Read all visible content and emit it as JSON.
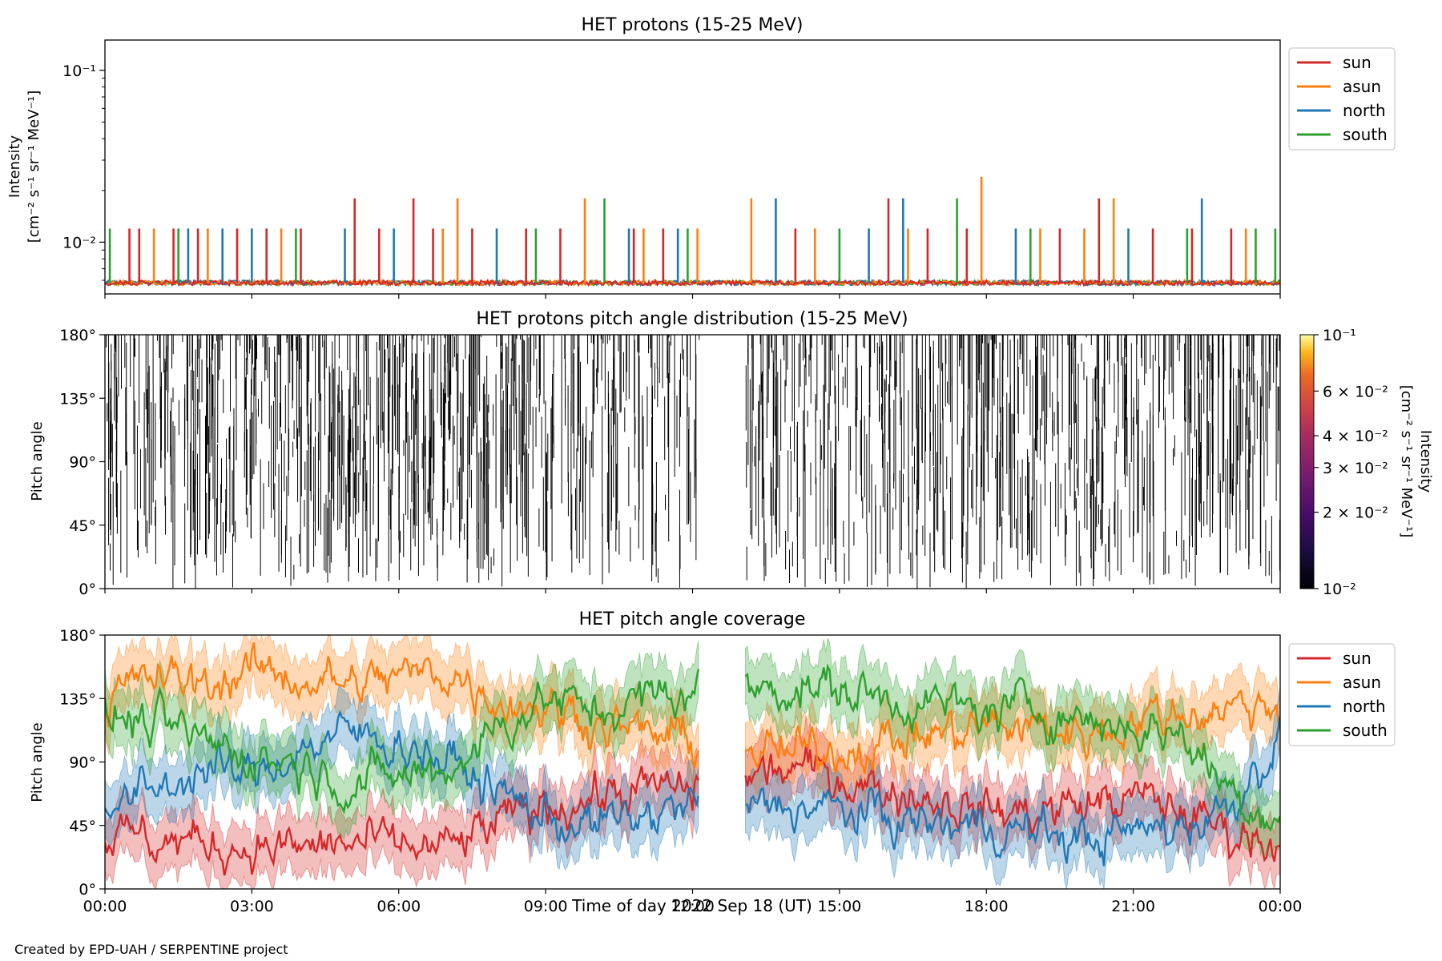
{
  "footer": {
    "credit": "Created by EPD-UAH / SERPENTINE project"
  },
  "colors": {
    "sun": "#d62728",
    "asun": "#ff7f0e",
    "north": "#1f77b4",
    "south": "#2ca02c"
  },
  "chart_data": [
    {
      "type": "line",
      "title": "HET protons (15-25 MeV)",
      "ylabel_line1": "Intensity",
      "ylabel_line2": "[cm⁻² s⁻¹ sr⁻¹ MeV⁻¹]",
      "yscale": "log",
      "ylim": [
        0.005,
        0.15
      ],
      "yticks": [
        "10⁻¹",
        "10⁻²"
      ],
      "ytick_values": [
        0.1,
        0.01
      ],
      "xlim": [
        "2022-09-18 00:00",
        "2022-09-19 00:00"
      ],
      "legend": [
        "sun",
        "asun",
        "north",
        "south"
      ],
      "legend_position": "right",
      "baseline_value": 0.0058,
      "series": [
        {
          "name": "sun",
          "spikes": [
            [
              0.5,
              0.012
            ],
            [
              0.7,
              0.012
            ],
            [
              1.4,
              0.012
            ],
            [
              1.9,
              0.012
            ],
            [
              2.7,
              0.012
            ],
            [
              3.3,
              0.012
            ],
            [
              4.0,
              0.012
            ],
            [
              5.1,
              0.018
            ],
            [
              5.6,
              0.012
            ],
            [
              6.3,
              0.018
            ],
            [
              6.7,
              0.012
            ],
            [
              7.5,
              0.012
            ],
            [
              8.6,
              0.012
            ],
            [
              9.3,
              0.012
            ],
            [
              10.8,
              0.012
            ],
            [
              11.4,
              0.012
            ],
            [
              14.1,
              0.012
            ],
            [
              16.0,
              0.018
            ],
            [
              16.8,
              0.012
            ],
            [
              17.6,
              0.012
            ],
            [
              19.5,
              0.012
            ],
            [
              20.3,
              0.018
            ],
            [
              21.4,
              0.012
            ],
            [
              22.2,
              0.012
            ],
            [
              23.0,
              0.012
            ]
          ]
        },
        {
          "name": "asun",
          "spikes": [
            [
              1.0,
              0.012
            ],
            [
              2.1,
              0.012
            ],
            [
              3.6,
              0.012
            ],
            [
              6.9,
              0.012
            ],
            [
              7.2,
              0.018
            ],
            [
              9.8,
              0.018
            ],
            [
              11.0,
              0.012
            ],
            [
              12.1,
              0.012
            ],
            [
              13.2,
              0.018
            ],
            [
              14.5,
              0.012
            ],
            [
              16.4,
              0.012
            ],
            [
              17.9,
              0.024
            ],
            [
              19.1,
              0.012
            ],
            [
              20.0,
              0.012
            ],
            [
              20.6,
              0.018
            ],
            [
              23.3,
              0.012
            ]
          ]
        },
        {
          "name": "north",
          "spikes": [
            [
              1.7,
              0.012
            ],
            [
              2.4,
              0.012
            ],
            [
              3.0,
              0.012
            ],
            [
              4.9,
              0.012
            ],
            [
              5.9,
              0.012
            ],
            [
              8.0,
              0.012
            ],
            [
              10.7,
              0.012
            ],
            [
              11.7,
              0.012
            ],
            [
              13.7,
              0.018
            ],
            [
              15.6,
              0.012
            ],
            [
              16.3,
              0.018
            ],
            [
              18.6,
              0.012
            ],
            [
              20.9,
              0.012
            ],
            [
              22.4,
              0.018
            ]
          ]
        },
        {
          "name": "south",
          "spikes": [
            [
              0.1,
              0.012
            ],
            [
              1.5,
              0.012
            ],
            [
              3.9,
              0.012
            ],
            [
              8.8,
              0.012
            ],
            [
              10.2,
              0.018
            ],
            [
              11.9,
              0.012
            ],
            [
              15.0,
              0.012
            ],
            [
              17.4,
              0.018
            ],
            [
              18.9,
              0.012
            ],
            [
              22.1,
              0.012
            ],
            [
              23.5,
              0.012
            ],
            [
              23.9,
              0.012
            ]
          ]
        }
      ]
    },
    {
      "type": "heatmap",
      "title": "HET protons pitch angle distribution (15-25 MeV)",
      "ylabel": "Pitch angle",
      "ylim": [
        0,
        180
      ],
      "yticks": [
        "0°",
        "45°",
        "90°",
        "135°",
        "180°"
      ],
      "ytick_values": [
        0,
        45,
        90,
        135,
        180
      ],
      "xlim": [
        "2022-09-18 00:00",
        "2022-09-19 00:00"
      ],
      "data_gap_hours": [
        12.15,
        13.05
      ],
      "colorbar": {
        "label_line1": "Intensity",
        "label_line2": "[cm⁻² s⁻¹ sr⁻¹ MeV⁻¹]",
        "scale": "log",
        "range": [
          0.01,
          0.1
        ],
        "ticks": [
          {
            "value": 0.1,
            "label": "10⁻¹"
          },
          {
            "value": 0.06,
            "label": "6 × 10⁻²"
          },
          {
            "value": 0.04,
            "label": "4 × 10⁻²"
          },
          {
            "value": 0.03,
            "label": "3 × 10⁻²"
          },
          {
            "value": 0.02,
            "label": "2 × 10⁻²"
          },
          {
            "value": 0.01,
            "label": "10⁻²"
          }
        ],
        "colormap": "inferno"
      },
      "pattern": "sparse near-zero intensity counts shown as thin vertical black strokes spanning pitch-angle bins"
    },
    {
      "type": "line",
      "title": "HET pitch angle coverage",
      "ylabel": "Pitch angle",
      "xlabel": "Time of day 2022 Sep 18 (UT)",
      "ylim": [
        0,
        180
      ],
      "yticks": [
        "0°",
        "45°",
        "90°",
        "135°",
        "180°"
      ],
      "ytick_values": [
        0,
        45,
        90,
        135,
        180
      ],
      "xlim": [
        "2022-09-18 00:00",
        "2022-09-19 00:00"
      ],
      "xticks": [
        "00:00",
        "03:00",
        "06:00",
        "09:00",
        "12:00",
        "15:00",
        "18:00",
        "21:00",
        "00:00"
      ],
      "legend": [
        "sun",
        "asun",
        "north",
        "south"
      ],
      "legend_position": "right",
      "data_gap_hours": [
        12.15,
        13.05
      ],
      "band_half_width_deg": 20,
      "series": [
        {
          "name": "sun",
          "x_hours": [
            0,
            1,
            2,
            3,
            4,
            5,
            6,
            7,
            8,
            9,
            10,
            11,
            12,
            13,
            14,
            15,
            16,
            17,
            18,
            19,
            20,
            21,
            22,
            23,
            24
          ],
          "values": [
            40,
            35,
            32,
            30,
            28,
            32,
            30,
            28,
            45,
            60,
            65,
            70,
            70,
            80,
            85,
            80,
            70,
            65,
            55,
            55,
            60,
            65,
            55,
            40,
            35
          ]
        },
        {
          "name": "asun",
          "x_hours": [
            0,
            1,
            2,
            3,
            4,
            5,
            6,
            7,
            8,
            9,
            10,
            11,
            12,
            13,
            14,
            15,
            16,
            17,
            18,
            19,
            20,
            21,
            22,
            23,
            24
          ],
          "values": [
            135,
            150,
            145,
            155,
            150,
            145,
            150,
            155,
            135,
            130,
            120,
            110,
            105,
            100,
            95,
            100,
            105,
            110,
            115,
            115,
            110,
            120,
            125,
            130,
            130
          ]
        },
        {
          "name": "north",
          "x_hours": [
            0,
            1,
            2,
            3,
            4,
            5,
            6,
            7,
            8,
            9,
            10,
            11,
            12,
            13,
            14,
            15,
            16,
            17,
            18,
            19,
            20,
            21,
            22,
            23,
            24
          ],
          "values": [
            55,
            70,
            85,
            80,
            100,
            110,
            105,
            90,
            70,
            50,
            45,
            50,
            60,
            55,
            60,
            55,
            50,
            45,
            45,
            40,
            35,
            40,
            45,
            60,
            110
          ]
        },
        {
          "name": "south",
          "x_hours": [
            0,
            1,
            2,
            3,
            4,
            5,
            6,
            7,
            8,
            9,
            10,
            11,
            12,
            13,
            14,
            15,
            16,
            17,
            18,
            19,
            20,
            21,
            22,
            23,
            24
          ],
          "values": [
            125,
            115,
            105,
            95,
            90,
            75,
            80,
            85,
            115,
            135,
            125,
            135,
            140,
            140,
            145,
            140,
            135,
            130,
            125,
            130,
            120,
            115,
            110,
            70,
            50
          ]
        }
      ]
    }
  ]
}
